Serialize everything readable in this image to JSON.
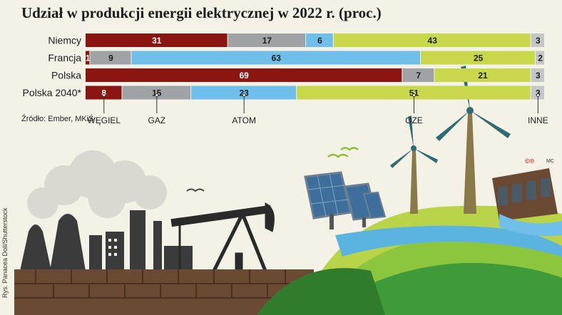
{
  "title": "Udział w produkcji energii elektrycznej w 2022 r. (proc.)",
  "source": "Źródło: Ember, MKiŚ",
  "credit_left": "Rys. Panacea Doll/Shutterstock",
  "credit_right": "©℗",
  "credit_right_small": "MC",
  "colors": {
    "WĘGIEL": "#8b1510",
    "GAZ": "#a0a3a6",
    "ATOM": "#6fbfea",
    "OZE": "#c9d84a",
    "INNE": "#c4c6c8"
  },
  "chart_data": {
    "type": "bar",
    "orientation": "horizontal",
    "stacked": true,
    "categories": [
      "Niemcy",
      "Francja",
      "Polska",
      "Polska 2040*"
    ],
    "series": [
      {
        "name": "WĘGIEL",
        "values": [
          31,
          1,
          69,
          8
        ]
      },
      {
        "name": "GAZ",
        "values": [
          17,
          9,
          7,
          15
        ]
      },
      {
        "name": "ATOM",
        "values": [
          6,
          63,
          0,
          23
        ]
      },
      {
        "name": "OZE",
        "values": [
          43,
          25,
          21,
          51
        ]
      },
      {
        "name": "INNE",
        "values": [
          3,
          2,
          3,
          3
        ]
      }
    ],
    "xlim": [
      0,
      100
    ],
    "legend": "bottom",
    "legend_anchor_row": "Polska 2040*",
    "title": "Udział w produkcji energii elektrycznej w 2022 r. (proc.)"
  }
}
